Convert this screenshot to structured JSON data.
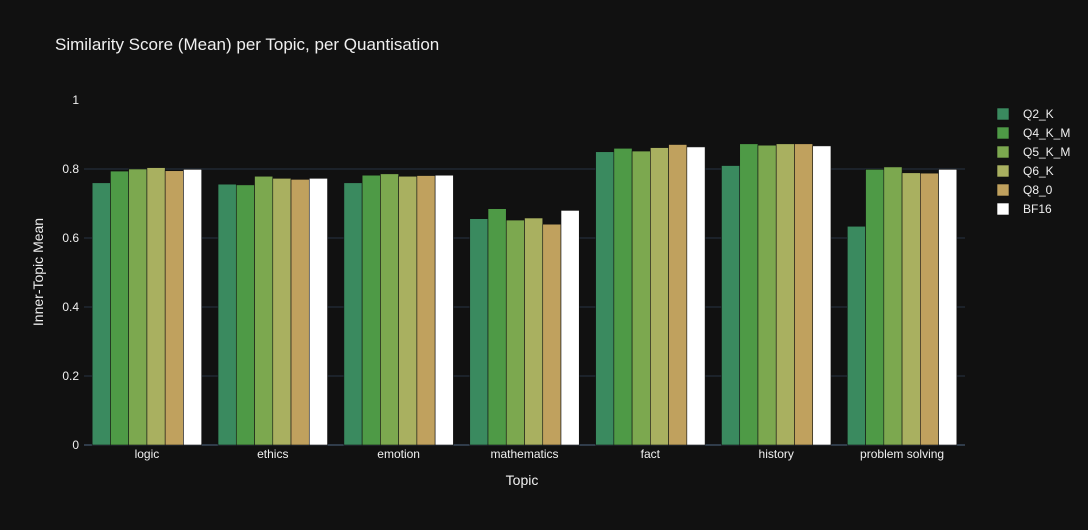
{
  "chart_data": {
    "type": "bar",
    "title": "Similarity Score (Mean) per Topic, per Quantisation",
    "xlabel": "Topic",
    "ylabel": "Inner-Topic Mean",
    "ylim": [
      0,
      1
    ],
    "yticks": [
      0,
      0.2,
      0.4,
      0.6,
      0.8,
      1
    ],
    "ytick_labels": [
      "0",
      "0.2",
      "0.4",
      "0.6",
      "0.8",
      "1"
    ],
    "grid": true,
    "legend_position": "top-right",
    "categories": [
      "logic",
      "ethics",
      "emotion",
      "mathematics",
      "fact",
      "history",
      "problem solving"
    ],
    "series": [
      {
        "name": "Q2_K",
        "color": "#3a8a5f",
        "values": [
          0.76,
          0.756,
          0.76,
          0.656,
          0.85,
          0.81,
          0.634
        ]
      },
      {
        "name": "Q4_K_M",
        "color": "#4e9a46",
        "values": [
          0.794,
          0.754,
          0.782,
          0.685,
          0.86,
          0.873,
          0.799
        ]
      },
      {
        "name": "Q5_K_M",
        "color": "#7ca84f",
        "values": [
          0.8,
          0.779,
          0.786,
          0.652,
          0.852,
          0.869,
          0.806
        ]
      },
      {
        "name": "Q6_K",
        "color": "#a9b060",
        "values": [
          0.804,
          0.773,
          0.779,
          0.658,
          0.862,
          0.873,
          0.789
        ]
      },
      {
        "name": "Q8_0",
        "color": "#c0a15e",
        "values": [
          0.795,
          0.77,
          0.781,
          0.64,
          0.871,
          0.873,
          0.788
        ]
      },
      {
        "name": "BF16",
        "color": "#ffffff",
        "values": [
          0.799,
          0.773,
          0.782,
          0.68,
          0.864,
          0.867,
          0.799
        ]
      }
    ]
  }
}
